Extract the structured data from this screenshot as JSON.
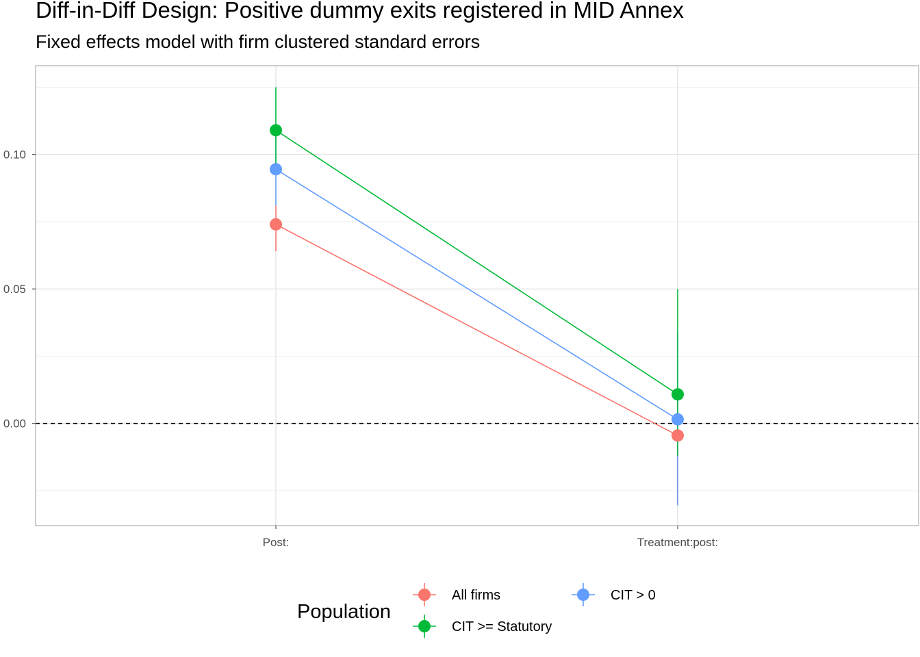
{
  "chart_data": {
    "type": "scatter",
    "title": "Diff-in-Diff Design: Positive dummy exits registered in MID Annex",
    "subtitle": "Fixed effects model with firm clustered standard errors",
    "xlabel": "",
    "ylabel": "",
    "categories": [
      "Post:",
      "Treatment:post:"
    ],
    "ylim": [
      -0.038,
      0.133
    ],
    "yticks": [
      0.0,
      0.05,
      0.1
    ],
    "ytick_labels": [
      "0.00",
      "0.05",
      "0.10"
    ],
    "grid": true,
    "reference_line": 0,
    "legend": {
      "title": "Population",
      "position": "bottom"
    },
    "series": [
      {
        "name": "All firms",
        "color": "#F8766D",
        "values": [
          0.074,
          -0.0045
        ],
        "lower": [
          0.064,
          -0.03
        ],
        "upper": [
          0.081,
          0.013
        ]
      },
      {
        "name": "CIT > 0",
        "color": "#619CFF",
        "values": [
          0.0945,
          0.0015
        ],
        "lower": [
          0.081,
          -0.0305
        ],
        "upper": [
          0.108,
          0.0345
        ]
      },
      {
        "name": "CIT >= Statutory",
        "color": "#00BA38",
        "values": [
          0.109,
          0.0108
        ],
        "lower": [
          0.0945,
          -0.012
        ],
        "upper": [
          0.125,
          0.05
        ]
      }
    ]
  }
}
